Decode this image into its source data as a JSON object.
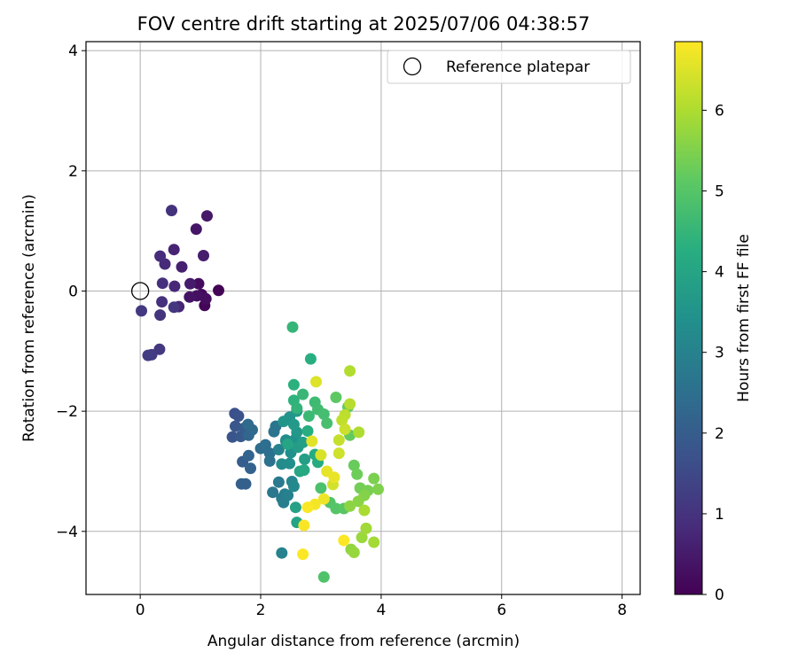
{
  "chart_data": {
    "type": "scatter",
    "title": "FOV centre drift starting at 2025/07/06 04:38:57",
    "xlabel": "Angular distance from reference (arcmin)",
    "ylabel": "Rotation from reference (arcmin)",
    "xlim": [
      -0.9,
      8.3
    ],
    "ylim": [
      -5.05,
      4.15
    ],
    "xticks": [
      "0",
      "2",
      "4",
      "6",
      "8"
    ],
    "yticks": [
      "−4",
      "−2",
      "0",
      "2",
      "4"
    ],
    "grid": true,
    "legend": {
      "placement": "upper right",
      "entries": [
        "Reference platepar"
      ]
    },
    "reference_point": {
      "x": 0,
      "y": 0
    },
    "colorbar": {
      "label": "Hours from first FF file",
      "range": [
        0,
        6.85
      ],
      "ticks": [
        "0",
        "1",
        "2",
        "3",
        "4",
        "5",
        "6"
      ],
      "colormap": "viridis"
    },
    "points": [
      [
        1.3,
        0.01,
        0.05
      ],
      [
        1.07,
        -0.24,
        0.1
      ],
      [
        1.02,
        -0.06,
        0.15
      ],
      [
        0.97,
        0.12,
        0.2
      ],
      [
        1.09,
        -0.13,
        0.25
      ],
      [
        0.94,
        -0.08,
        0.3
      ],
      [
        0.82,
        -0.1,
        0.35
      ],
      [
        0.93,
        1.03,
        0.4
      ],
      [
        1.11,
        1.25,
        0.45
      ],
      [
        0.83,
        0.12,
        0.5
      ],
      [
        1.05,
        0.59,
        0.55
      ],
      [
        0.69,
        0.4,
        0.62
      ],
      [
        0.56,
        0.69,
        0.68
      ],
      [
        0.64,
        -0.26,
        0.72
      ],
      [
        0.57,
        0.08,
        0.78
      ],
      [
        0.41,
        0.45,
        0.82
      ],
      [
        0.33,
        0.58,
        0.86
      ],
      [
        0.37,
        0.13,
        0.9
      ],
      [
        0.36,
        -0.18,
        0.94
      ],
      [
        0.52,
        1.34,
        0.98
      ],
      [
        0.33,
        -0.4,
        1.02
      ],
      [
        0.56,
        -0.27,
        1.06
      ],
      [
        0.32,
        -0.97,
        1.1
      ],
      [
        0.02,
        -0.33,
        1.14
      ],
      [
        0.19,
        -1.06,
        1.18
      ],
      [
        0.13,
        -1.07,
        1.22
      ],
      [
        1.57,
        -2.04,
        1.7
      ],
      [
        1.63,
        -2.08,
        1.75
      ],
      [
        1.53,
        -2.43,
        1.8
      ],
      [
        1.58,
        -2.25,
        1.85
      ],
      [
        1.67,
        -2.42,
        1.9
      ],
      [
        1.73,
        -2.28,
        1.95
      ],
      [
        1.7,
        -2.84,
        2.0
      ],
      [
        1.68,
        -3.21,
        2.05
      ],
      [
        1.75,
        -3.21,
        2.1
      ],
      [
        1.83,
        -2.95,
        2.15
      ],
      [
        1.8,
        -2.74,
        2.2
      ],
      [
        1.8,
        -2.4,
        2.25
      ],
      [
        1.86,
        -2.31,
        2.3
      ],
      [
        1.79,
        -2.22,
        2.35
      ],
      [
        2.0,
        -2.62,
        2.4
      ],
      [
        2.08,
        -2.56,
        2.45
      ],
      [
        2.15,
        -2.7,
        2.5
      ],
      [
        2.15,
        -2.83,
        2.55
      ],
      [
        2.22,
        -2.34,
        2.6
      ],
      [
        2.25,
        -2.25,
        2.65
      ],
      [
        2.2,
        -3.35,
        2.7
      ],
      [
        2.3,
        -3.18,
        2.75
      ],
      [
        2.35,
        -3.45,
        2.8
      ],
      [
        2.4,
        -3.38,
        2.85
      ],
      [
        2.38,
        -3.52,
        2.9
      ],
      [
        2.45,
        -3.4,
        2.95
      ],
      [
        2.35,
        -4.36,
        3.0
      ],
      [
        2.3,
        -2.64,
        3.05
      ],
      [
        2.42,
        -2.5,
        3.1
      ],
      [
        2.52,
        -3.17,
        3.15
      ],
      [
        2.55,
        -3.25,
        3.2
      ],
      [
        2.35,
        -2.88,
        3.25
      ],
      [
        2.42,
        -2.48,
        3.3
      ],
      [
        2.48,
        -2.87,
        3.35
      ],
      [
        2.5,
        -2.69,
        3.4
      ],
      [
        2.58,
        -2.46,
        3.45
      ],
      [
        2.48,
        -2.1,
        3.5
      ],
      [
        2.38,
        -2.17,
        3.55
      ],
      [
        2.6,
        -2.35,
        3.6
      ],
      [
        2.55,
        -2.22,
        3.65
      ],
      [
        2.6,
        -2.0,
        3.7
      ],
      [
        2.62,
        -2.6,
        3.75
      ],
      [
        2.7,
        -2.52,
        3.8
      ],
      [
        2.73,
        -2.8,
        3.85
      ],
      [
        2.58,
        -3.6,
        3.9
      ],
      [
        2.6,
        -3.85,
        3.95
      ],
      [
        2.45,
        -2.55,
        4.0
      ],
      [
        2.65,
        -3.0,
        4.05
      ],
      [
        2.72,
        -2.98,
        4.1
      ],
      [
        2.9,
        -2.72,
        4.15
      ],
      [
        2.95,
        -2.85,
        4.2
      ],
      [
        2.78,
        -2.33,
        4.25
      ],
      [
        2.83,
        -1.13,
        4.3
      ],
      [
        2.55,
        -1.56,
        4.35
      ],
      [
        2.55,
        -1.82,
        4.4
      ],
      [
        2.6,
        -1.95,
        4.45
      ],
      [
        2.53,
        -0.6,
        4.5
      ],
      [
        2.7,
        -1.72,
        4.55
      ],
      [
        2.8,
        -2.08,
        4.6
      ],
      [
        2.9,
        -1.85,
        4.65
      ],
      [
        2.95,
        -1.97,
        4.7
      ],
      [
        3.05,
        -2.05,
        4.75
      ],
      [
        3.1,
        -2.2,
        4.8
      ],
      [
        3.0,
        -3.28,
        4.85
      ],
      [
        3.05,
        -4.76,
        4.9
      ],
      [
        3.15,
        -3.52,
        4.95
      ],
      [
        3.25,
        -3.62,
        5.0
      ],
      [
        3.38,
        -3.62,
        5.05
      ],
      [
        3.25,
        -1.77,
        5.1
      ],
      [
        3.45,
        -1.93,
        5.15
      ],
      [
        3.48,
        -2.4,
        5.2
      ],
      [
        3.55,
        -2.9,
        5.25
      ],
      [
        3.6,
        -3.05,
        5.3
      ],
      [
        3.65,
        -3.28,
        5.35
      ],
      [
        3.78,
        -3.32,
        5.4
      ],
      [
        3.88,
        -3.12,
        5.45
      ],
      [
        3.95,
        -3.3,
        5.5
      ],
      [
        3.72,
        -3.4,
        5.55
      ],
      [
        3.62,
        -3.5,
        5.6
      ],
      [
        3.48,
        -3.58,
        5.65
      ],
      [
        3.5,
        -4.3,
        5.7
      ],
      [
        3.55,
        -4.35,
        5.75
      ],
      [
        3.68,
        -4.1,
        5.8
      ],
      [
        3.75,
        -3.95,
        5.85
      ],
      [
        3.88,
        -4.18,
        5.9
      ],
      [
        3.72,
        -3.65,
        5.95
      ],
      [
        3.63,
        -2.35,
        6.0
      ],
      [
        3.48,
        -1.33,
        6.05
      ],
      [
        3.48,
        -1.88,
        6.1
      ],
      [
        3.4,
        -2.06,
        6.15
      ],
      [
        3.35,
        -2.15,
        6.2
      ],
      [
        3.3,
        -2.48,
        6.25
      ],
      [
        3.4,
        -2.3,
        6.3
      ],
      [
        3.3,
        -2.7,
        6.35
      ],
      [
        3.2,
        -3.22,
        6.4
      ],
      [
        3.0,
        -2.73,
        6.45
      ],
      [
        2.92,
        -1.51,
        6.5
      ],
      [
        2.85,
        -2.5,
        6.55
      ],
      [
        3.1,
        -3.0,
        6.6
      ],
      [
        3.22,
        -3.1,
        6.65
      ],
      [
        3.05,
        -3.46,
        6.7
      ],
      [
        2.9,
        -3.55,
        6.75
      ],
      [
        2.72,
        -3.9,
        6.8
      ],
      [
        2.78,
        -3.6,
        6.82
      ],
      [
        2.7,
        -4.38,
        6.84
      ],
      [
        3.38,
        -4.15,
        6.85
      ]
    ]
  }
}
